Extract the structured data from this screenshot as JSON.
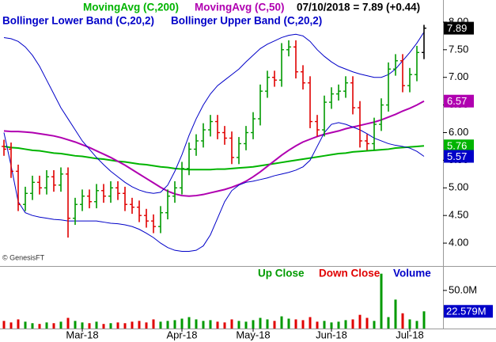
{
  "chart_data": {
    "type": "ohlc",
    "quote": "07/10/2018 = 7.89 (+0.44)",
    "source": "© GenesisFT",
    "categories": [
      null,
      null,
      null,
      null,
      null,
      null,
      null,
      null,
      null,
      null,
      null,
      "Mar-18",
      null,
      null,
      null,
      null,
      null,
      null,
      null,
      null,
      null,
      null,
      null,
      null,
      null,
      "Apr-18",
      null,
      null,
      null,
      null,
      null,
      null,
      null,
      null,
      null,
      "May-18",
      null,
      null,
      null,
      null,
      null,
      null,
      null,
      null,
      null,
      null,
      "Jun-18",
      null,
      null,
      null,
      null,
      null,
      null,
      null,
      null,
      null,
      null,
      "Jul-18",
      null,
      null
    ],
    "open": [
      5.75,
      5.7,
      5.3,
      4.7,
      4.9,
      5.1,
      5.0,
      5.2,
      5.05,
      5.25,
      4.45,
      4.7,
      4.85,
      4.75,
      4.95,
      4.85,
      5.0,
      4.9,
      4.7,
      4.65,
      4.5,
      4.4,
      4.3,
      4.55,
      4.85,
      5.0,
      5.35,
      5.7,
      5.85,
      6.05,
      6.2,
      6.0,
      5.9,
      5.55,
      5.8,
      6.0,
      6.25,
      6.75,
      7.0,
      6.95,
      7.5,
      7.55,
      7.1,
      6.9,
      6.2,
      6.05,
      6.55,
      6.7,
      6.75,
      6.9,
      6.45,
      5.85,
      5.8,
      6.15,
      6.5,
      7.15,
      7.3,
      6.85,
      7.05,
      7.45
    ],
    "high": [
      5.87,
      5.82,
      5.42,
      5.02,
      5.22,
      5.22,
      5.32,
      5.32,
      5.37,
      5.37,
      4.82,
      4.97,
      4.97,
      5.07,
      5.07,
      5.12,
      5.12,
      5.02,
      4.82,
      4.77,
      4.62,
      4.52,
      4.67,
      4.97,
      5.12,
      5.47,
      5.82,
      5.97,
      6.17,
      6.32,
      6.32,
      6.12,
      6.02,
      5.92,
      6.12,
      6.37,
      6.87,
      7.12,
      7.12,
      7.62,
      7.67,
      7.67,
      7.22,
      7.02,
      6.32,
      6.67,
      6.82,
      6.87,
      7.02,
      7.02,
      6.57,
      5.97,
      6.27,
      6.62,
      7.27,
      7.42,
      7.42,
      7.17,
      7.57,
      7.95
    ],
    "low": [
      5.58,
      5.18,
      4.58,
      4.58,
      4.78,
      4.88,
      4.88,
      4.93,
      4.93,
      4.1,
      4.33,
      4.58,
      4.63,
      4.63,
      4.73,
      4.73,
      4.78,
      4.58,
      4.53,
      4.38,
      4.28,
      4.18,
      4.18,
      4.43,
      4.73,
      4.88,
      5.23,
      5.58,
      5.73,
      5.93,
      5.88,
      5.78,
      5.43,
      5.43,
      5.68,
      5.88,
      6.13,
      6.63,
      6.83,
      6.83,
      7.38,
      6.98,
      6.78,
      6.08,
      5.93,
      5.93,
      6.43,
      6.58,
      6.63,
      6.33,
      5.73,
      5.68,
      5.68,
      6.03,
      6.38,
      7.03,
      6.73,
      6.73,
      6.93,
      7.33
    ],
    "close": [
      5.7,
      5.3,
      4.7,
      4.9,
      5.1,
      5.0,
      5.2,
      5.05,
      5.25,
      4.45,
      4.7,
      4.85,
      4.75,
      4.95,
      4.85,
      5.0,
      4.9,
      4.7,
      4.65,
      4.5,
      4.4,
      4.3,
      4.55,
      4.85,
      5.0,
      5.35,
      5.7,
      5.85,
      6.05,
      6.2,
      6.0,
      5.9,
      5.55,
      5.8,
      6.0,
      6.25,
      6.75,
      7.0,
      6.95,
      7.5,
      7.55,
      7.1,
      6.9,
      6.2,
      6.05,
      6.55,
      6.7,
      6.75,
      6.9,
      6.45,
      5.85,
      5.8,
      6.15,
      6.5,
      7.15,
      7.3,
      6.85,
      7.05,
      7.45,
      7.89
    ],
    "up_color": "#009a00",
    "down_color": "#e00000",
    "last_color": "#000000",
    "series": [
      {
        "name": "MovingAvg (C,200)",
        "color": "#00b400",
        "values": [
          5.75,
          5.73,
          5.72,
          5.7,
          5.68,
          5.67,
          5.65,
          5.63,
          5.62,
          5.6,
          5.58,
          5.57,
          5.55,
          5.53,
          5.52,
          5.5,
          5.48,
          5.47,
          5.45,
          5.43,
          5.42,
          5.4,
          5.38,
          5.37,
          5.35,
          5.34,
          5.33,
          5.33,
          5.33,
          5.33,
          5.34,
          5.34,
          5.35,
          5.36,
          5.37,
          5.38,
          5.4,
          5.42,
          5.44,
          5.46,
          5.48,
          5.5,
          5.52,
          5.54,
          5.56,
          5.58,
          5.6,
          5.62,
          5.63,
          5.65,
          5.66,
          5.67,
          5.68,
          5.69,
          5.7,
          5.72,
          5.73,
          5.74,
          5.75,
          5.76
        ]
      },
      {
        "name": "MovingAvg (C,50)",
        "color": "#b000b0",
        "values": [
          6.03,
          6.02,
          6.02,
          6.01,
          6.0,
          5.98,
          5.96,
          5.94,
          5.91,
          5.87,
          5.83,
          5.78,
          5.73,
          5.67,
          5.61,
          5.55,
          5.48,
          5.41,
          5.33,
          5.25,
          5.17,
          5.09,
          5.01,
          4.94,
          4.89,
          4.86,
          4.85,
          4.86,
          4.88,
          4.91,
          4.94,
          4.97,
          5.01,
          5.06,
          5.12,
          5.2,
          5.29,
          5.39,
          5.49,
          5.59,
          5.68,
          5.76,
          5.83,
          5.88,
          5.93,
          5.97,
          6.0,
          6.03,
          6.07,
          6.1,
          6.13,
          6.16,
          6.19,
          6.23,
          6.28,
          6.33,
          6.39,
          6.44,
          6.5,
          6.57
        ]
      },
      {
        "name": "Bollinger Lower Band (C,20,2)",
        "color": "#0000c8",
        "values": [
          6.0,
          5.4,
          4.75,
          4.55,
          4.5,
          4.47,
          4.45,
          4.43,
          4.42,
          4.4,
          4.4,
          4.4,
          4.4,
          4.4,
          4.38,
          4.36,
          4.35,
          4.33,
          4.3,
          4.25,
          4.18,
          4.1,
          4.0,
          3.92,
          3.87,
          3.85,
          3.85,
          3.87,
          3.95,
          4.15,
          4.45,
          4.75,
          4.95,
          5.05,
          5.1,
          5.12,
          5.15,
          5.18,
          5.22,
          5.25,
          5.28,
          5.32,
          5.38,
          5.5,
          5.75,
          6.0,
          6.15,
          6.18,
          6.15,
          6.1,
          6.05,
          5.98,
          5.9,
          5.85,
          5.8,
          5.77,
          5.75,
          5.72,
          5.66,
          5.57
        ]
      },
      {
        "name": "Bollinger Upper Band (C,20,2)",
        "color": "#0000c8",
        "values": [
          7.72,
          7.7,
          7.65,
          7.55,
          7.4,
          7.2,
          6.95,
          6.7,
          6.45,
          6.25,
          6.05,
          5.85,
          5.7,
          5.55,
          5.42,
          5.3,
          5.2,
          5.1,
          5.02,
          4.96,
          4.92,
          4.9,
          4.92,
          5.05,
          5.3,
          5.6,
          5.95,
          6.25,
          6.5,
          6.7,
          6.85,
          6.95,
          7.05,
          7.15,
          7.28,
          7.4,
          7.52,
          7.6,
          7.66,
          7.72,
          7.76,
          7.78,
          7.75,
          7.65,
          7.5,
          7.38,
          7.28,
          7.2,
          7.15,
          7.1,
          7.06,
          7.03,
          7.0,
          7.0,
          7.05,
          7.15,
          7.3,
          7.45,
          7.62,
          7.82
        ]
      }
    ],
    "ylim": [
      3.6,
      8.4
    ],
    "yticks": [
      {
        "value": 4,
        "label": "4.00"
      },
      {
        "value": 4.5,
        "label": "4.50"
      },
      {
        "value": 5,
        "label": "5.00"
      },
      {
        "value": 5.5,
        "label": "5.50"
      },
      {
        "value": 6,
        "label": "6.00"
      },
      {
        "value": 6.5,
        "label": "6.50"
      },
      {
        "value": 7,
        "label": "7.00"
      },
      {
        "value": 7.5,
        "label": "7.50"
      },
      {
        "value": 8,
        "label": "8.00"
      }
    ],
    "volume": {
      "type": "bar",
      "legend": [
        "Up Close",
        "Down Close",
        "Volume"
      ],
      "color": "#0000c8",
      "values": [
        10,
        8,
        12,
        9,
        7,
        6,
        8,
        7,
        9,
        14,
        10,
        8,
        7,
        9,
        6,
        7,
        8,
        7,
        9,
        10,
        8,
        12,
        9,
        10,
        11,
        13,
        15,
        12,
        10,
        11,
        9,
        8,
        12,
        10,
        9,
        11,
        14,
        12,
        10,
        16,
        13,
        12,
        11,
        15,
        9,
        10,
        8,
        9,
        11,
        12,
        18,
        14,
        10,
        72,
        15,
        38,
        20,
        12,
        10,
        22.579
      ],
      "last_label": "22.579M",
      "ylim": [
        0,
        80
      ],
      "yticks": [
        {
          "value": 50,
          "label": "50.0M"
        }
      ]
    }
  }
}
